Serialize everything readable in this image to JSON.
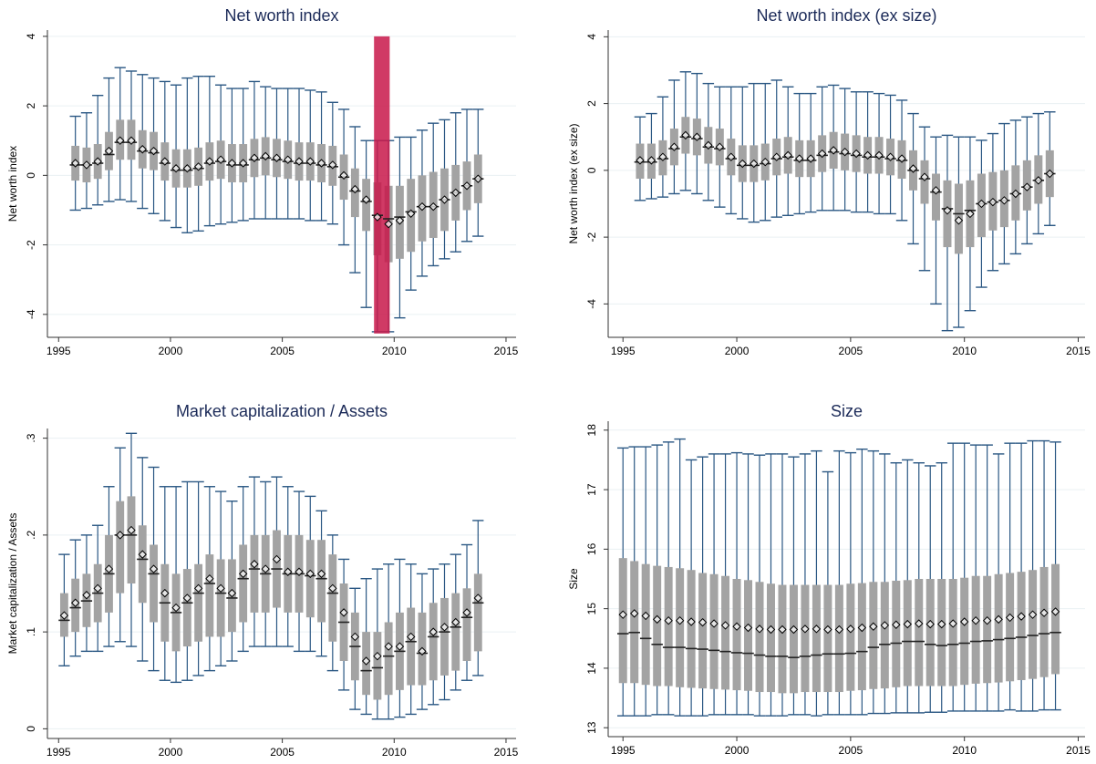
{
  "chart_data": [
    {
      "type": "box",
      "title": "Net worth index",
      "y_label": "Net worth index",
      "x": [
        1995.75,
        1996.25,
        1996.75,
        1997.25,
        1997.75,
        1998.25,
        1998.75,
        1999.25,
        1999.75,
        2000.25,
        2000.75,
        2001.25,
        2001.75,
        2002.25,
        2002.75,
        2003.25,
        2003.75,
        2004.25,
        2004.75,
        2005.25,
        2005.75,
        2006.25,
        2006.75,
        2007.25,
        2007.75,
        2008.25,
        2008.75,
        2009.25,
        2009.75,
        2010.25,
        2010.75,
        2011.25,
        2011.75,
        2012.25,
        2012.75,
        2013.25,
        2013.75
      ],
      "mean": [
        0.35,
        0.3,
        0.4,
        0.7,
        1.0,
        1.0,
        0.75,
        0.7,
        0.4,
        0.2,
        0.2,
        0.25,
        0.4,
        0.45,
        0.35,
        0.35,
        0.5,
        0.55,
        0.5,
        0.45,
        0.4,
        0.4,
        0.35,
        0.3,
        0.0,
        -0.4,
        -0.7,
        -1.2,
        -1.4,
        -1.3,
        -1.1,
        -0.9,
        -0.9,
        -0.7,
        -0.5,
        -0.3,
        -0.1
      ],
      "median": [
        0.3,
        0.3,
        0.35,
        0.6,
        0.95,
        0.95,
        0.7,
        0.65,
        0.35,
        0.15,
        0.15,
        0.2,
        0.35,
        0.4,
        0.3,
        0.3,
        0.45,
        0.5,
        0.45,
        0.4,
        0.35,
        0.35,
        0.3,
        0.25,
        -0.05,
        -0.45,
        -0.75,
        -1.15,
        -1.25,
        -1.2,
        -1.05,
        -0.9,
        -0.9,
        -0.7,
        -0.5,
        -0.3,
        -0.1
      ],
      "q1": [
        -0.15,
        -0.2,
        -0.1,
        0.15,
        0.45,
        0.45,
        0.2,
        0.15,
        -0.15,
        -0.35,
        -0.35,
        -0.3,
        -0.15,
        -0.1,
        -0.2,
        -0.2,
        -0.05,
        0.0,
        -0.05,
        -0.1,
        -0.15,
        -0.15,
        -0.2,
        -0.3,
        -0.7,
        -1.2,
        -1.6,
        -2.3,
        -2.5,
        -2.4,
        -2.2,
        -1.9,
        -1.8,
        -1.6,
        -1.3,
        -1.0,
        -0.8
      ],
      "q3": [
        0.85,
        0.8,
        0.9,
        1.25,
        1.6,
        1.6,
        1.3,
        1.25,
        0.95,
        0.75,
        0.75,
        0.8,
        0.95,
        1.0,
        0.9,
        0.9,
        1.05,
        1.1,
        1.05,
        1.0,
        0.95,
        0.95,
        0.9,
        0.85,
        0.6,
        0.2,
        -0.1,
        -0.2,
        -0.3,
        -0.3,
        -0.1,
        0.0,
        0.1,
        0.2,
        0.3,
        0.4,
        0.6
      ],
      "whisker_low": [
        -1.0,
        -0.95,
        -0.85,
        -0.75,
        -0.7,
        -0.75,
        -0.95,
        -1.1,
        -1.3,
        -1.5,
        -1.65,
        -1.6,
        -1.45,
        -1.4,
        -1.35,
        -1.3,
        -1.25,
        -1.25,
        -1.25,
        -1.25,
        -1.25,
        -1.3,
        -1.3,
        -1.4,
        -2.0,
        -2.8,
        -3.8,
        -4.5,
        -4.5,
        -4.1,
        -3.3,
        -2.9,
        -2.6,
        -2.4,
        -2.2,
        -1.9,
        -1.75
      ],
      "whisker_high": [
        1.7,
        1.8,
        2.3,
        2.8,
        3.1,
        3.0,
        2.9,
        2.8,
        2.7,
        2.6,
        2.8,
        2.85,
        2.85,
        2.6,
        2.5,
        2.5,
        2.7,
        2.55,
        2.5,
        2.5,
        2.5,
        2.45,
        2.4,
        2.1,
        1.9,
        1.4,
        1.0,
        1.0,
        1.0,
        1.1,
        1.1,
        1.3,
        1.5,
        1.6,
        1.8,
        1.9,
        1.9
      ],
      "highlight": {
        "x": [
          2009.1,
          2009.8
        ],
        "y": [
          -4.55,
          4
        ],
        "color": "#c8174a"
      },
      "xlim": [
        1994.5,
        2015.45
      ],
      "xticks": [
        1995,
        2000,
        2005,
        2010,
        2015
      ],
      "ylim": [
        -4.66,
        4.18
      ],
      "yticks": [
        -4,
        -2,
        0,
        2,
        4
      ],
      "grid": true,
      "box_color": "#a3a3a3",
      "whisker_color": "#2a5783",
      "marker_color": "#000000"
    },
    {
      "type": "box",
      "title": "Net worth index (ex size)",
      "y_label": "Net worth index (ex size)",
      "x": [
        1995.75,
        1996.25,
        1996.75,
        1997.25,
        1997.75,
        1998.25,
        1998.75,
        1999.25,
        1999.75,
        2000.25,
        2000.75,
        2001.25,
        2001.75,
        2002.25,
        2002.75,
        2003.25,
        2003.75,
        2004.25,
        2004.75,
        2005.25,
        2005.75,
        2006.25,
        2006.75,
        2007.25,
        2007.75,
        2008.25,
        2008.75,
        2009.25,
        2009.75,
        2010.25,
        2010.75,
        2011.25,
        2011.75,
        2012.25,
        2012.75,
        2013.25,
        2013.75
      ],
      "mean": [
        0.3,
        0.3,
        0.4,
        0.7,
        1.05,
        1.0,
        0.75,
        0.7,
        0.4,
        0.2,
        0.2,
        0.25,
        0.4,
        0.45,
        0.35,
        0.35,
        0.5,
        0.6,
        0.55,
        0.5,
        0.45,
        0.45,
        0.4,
        0.35,
        0.05,
        -0.2,
        -0.6,
        -1.2,
        -1.5,
        -1.3,
        -1.0,
        -0.95,
        -0.9,
        -0.7,
        -0.5,
        -0.3,
        -0.1
      ],
      "median": [
        0.25,
        0.25,
        0.35,
        0.65,
        1.0,
        0.95,
        0.7,
        0.65,
        0.35,
        0.15,
        0.15,
        0.2,
        0.35,
        0.4,
        0.3,
        0.3,
        0.45,
        0.55,
        0.5,
        0.45,
        0.4,
        0.4,
        0.35,
        0.3,
        0.0,
        -0.25,
        -0.65,
        -1.15,
        -1.3,
        -1.2,
        -1.0,
        -0.95,
        -0.9,
        -0.7,
        -0.5,
        -0.3,
        -0.1
      ],
      "q1": [
        -0.25,
        -0.25,
        -0.15,
        0.15,
        0.5,
        0.45,
        0.2,
        0.15,
        -0.15,
        -0.35,
        -0.35,
        -0.3,
        -0.15,
        -0.1,
        -0.2,
        -0.2,
        -0.05,
        0.05,
        0.0,
        -0.05,
        -0.1,
        -0.1,
        -0.15,
        -0.25,
        -0.6,
        -1.0,
        -1.5,
        -2.3,
        -2.5,
        -2.3,
        -2.0,
        -1.8,
        -1.7,
        -1.5,
        -1.2,
        -1.0,
        -0.8
      ],
      "q3": [
        0.8,
        0.8,
        0.9,
        1.25,
        1.6,
        1.55,
        1.3,
        1.25,
        0.95,
        0.75,
        0.75,
        0.8,
        0.95,
        1.0,
        0.9,
        0.9,
        1.05,
        1.15,
        1.1,
        1.05,
        1.0,
        1.0,
        0.95,
        0.9,
        0.6,
        0.3,
        -0.1,
        -0.3,
        -0.4,
        -0.3,
        -0.1,
        -0.05,
        0.0,
        0.15,
        0.3,
        0.45,
        0.6
      ],
      "whisker_low": [
        -0.9,
        -0.85,
        -0.8,
        -0.7,
        -0.6,
        -0.7,
        -0.9,
        -1.1,
        -1.3,
        -1.45,
        -1.55,
        -1.5,
        -1.4,
        -1.35,
        -1.3,
        -1.25,
        -1.2,
        -1.2,
        -1.2,
        -1.25,
        -1.25,
        -1.3,
        -1.3,
        -1.5,
        -2.2,
        -3.0,
        -4.0,
        -4.8,
        -4.7,
        -4.2,
        -3.5,
        -3.0,
        -2.8,
        -2.5,
        -2.2,
        -1.9,
        -1.65
      ],
      "whisker_high": [
        1.6,
        1.7,
        2.2,
        2.7,
        2.95,
        2.9,
        2.6,
        2.5,
        2.5,
        2.5,
        2.6,
        2.6,
        2.7,
        2.5,
        2.3,
        2.3,
        2.5,
        2.55,
        2.45,
        2.35,
        2.35,
        2.3,
        2.25,
        2.1,
        1.7,
        1.3,
        1.0,
        1.05,
        1.0,
        1.0,
        0.9,
        1.1,
        1.4,
        1.5,
        1.6,
        1.7,
        1.75
      ],
      "xlim": [
        1994.35,
        2015.3
      ],
      "xticks": [
        1995,
        2000,
        2005,
        2010,
        2015
      ],
      "ylim": [
        -5.0,
        4.2
      ],
      "yticks": [
        -4,
        -2,
        0,
        2,
        4
      ],
      "grid": true,
      "box_color": "#a3a3a3",
      "whisker_color": "#2a5783",
      "marker_color": "#000000"
    },
    {
      "type": "box",
      "title": "Market capitalization / Assets",
      "y_label": "Market capitalization / Assets",
      "x": [
        1995.25,
        1995.75,
        1996.25,
        1996.75,
        1997.25,
        1997.75,
        1998.25,
        1998.75,
        1999.25,
        1999.75,
        2000.25,
        2000.75,
        2001.25,
        2001.75,
        2002.25,
        2002.75,
        2003.25,
        2003.75,
        2004.25,
        2004.75,
        2005.25,
        2005.75,
        2006.25,
        2006.75,
        2007.25,
        2007.75,
        2008.25,
        2008.75,
        2009.25,
        2009.75,
        2010.25,
        2010.75,
        2011.25,
        2011.75,
        2012.25,
        2012.75,
        2013.25,
        2013.75
      ],
      "mean": [
        0.117,
        0.13,
        0.138,
        0.145,
        0.165,
        0.2,
        0.205,
        0.18,
        0.165,
        0.14,
        0.125,
        0.135,
        0.145,
        0.155,
        0.145,
        0.14,
        0.16,
        0.17,
        0.165,
        0.175,
        0.162,
        0.162,
        0.16,
        0.16,
        0.145,
        0.12,
        0.095,
        0.07,
        0.075,
        0.085,
        0.085,
        0.095,
        0.08,
        0.1,
        0.105,
        0.11,
        0.12,
        0.135
      ],
      "median": [
        0.112,
        0.125,
        0.132,
        0.14,
        0.16,
        0.2,
        0.2,
        0.175,
        0.16,
        0.13,
        0.12,
        0.13,
        0.14,
        0.15,
        0.14,
        0.135,
        0.155,
        0.165,
        0.16,
        0.165,
        0.16,
        0.16,
        0.158,
        0.155,
        0.14,
        0.11,
        0.085,
        0.06,
        0.063,
        0.075,
        0.08,
        0.09,
        0.078,
        0.095,
        0.1,
        0.105,
        0.115,
        0.13
      ],
      "q1": [
        0.095,
        0.1,
        0.105,
        0.11,
        0.12,
        0.14,
        0.15,
        0.13,
        0.11,
        0.09,
        0.08,
        0.085,
        0.09,
        0.095,
        0.095,
        0.1,
        0.11,
        0.12,
        0.12,
        0.125,
        0.12,
        0.12,
        0.115,
        0.11,
        0.09,
        0.07,
        0.05,
        0.035,
        0.03,
        0.035,
        0.04,
        0.045,
        0.045,
        0.05,
        0.055,
        0.06,
        0.07,
        0.08
      ],
      "q3": [
        0.14,
        0.155,
        0.16,
        0.17,
        0.2,
        0.235,
        0.24,
        0.21,
        0.19,
        0.17,
        0.16,
        0.165,
        0.17,
        0.18,
        0.175,
        0.175,
        0.19,
        0.2,
        0.2,
        0.205,
        0.2,
        0.2,
        0.195,
        0.195,
        0.18,
        0.15,
        0.12,
        0.1,
        0.1,
        0.11,
        0.12,
        0.125,
        0.12,
        0.13,
        0.135,
        0.14,
        0.145,
        0.16
      ],
      "whisker_low": [
        0.065,
        0.075,
        0.08,
        0.08,
        0.085,
        0.09,
        0.085,
        0.07,
        0.06,
        0.05,
        0.048,
        0.05,
        0.055,
        0.06,
        0.065,
        0.07,
        0.08,
        0.085,
        0.085,
        0.085,
        0.085,
        0.08,
        0.08,
        0.075,
        0.06,
        0.04,
        0.02,
        0.015,
        0.01,
        0.01,
        0.012,
        0.015,
        0.02,
        0.025,
        0.03,
        0.04,
        0.05,
        0.055
      ],
      "whisker_high": [
        0.18,
        0.195,
        0.2,
        0.21,
        0.25,
        0.29,
        0.305,
        0.28,
        0.27,
        0.25,
        0.25,
        0.255,
        0.255,
        0.25,
        0.245,
        0.235,
        0.25,
        0.26,
        0.255,
        0.26,
        0.25,
        0.245,
        0.24,
        0.225,
        0.2,
        0.175,
        0.145,
        0.155,
        0.165,
        0.17,
        0.175,
        0.17,
        0.16,
        0.165,
        0.17,
        0.18,
        0.19,
        0.215
      ],
      "xlim": [
        1994.5,
        2015.45
      ],
      "xticks": [
        1995,
        2000,
        2005,
        2010,
        2015
      ],
      "ylim": [
        -0.01,
        0.31
      ],
      "yticks": [
        0,
        {
          "value": 0.1,
          "label": ".1"
        },
        {
          "value": 0.2,
          "label": ".2"
        },
        {
          "value": 0.3,
          "label": ".3"
        }
      ],
      "grid": true,
      "box_color": "#a3a3a3",
      "whisker_color": "#2a5783",
      "marker_color": "#000000"
    },
    {
      "type": "box",
      "title": "Size",
      "y_label": "Size",
      "x": [
        1995.0,
        1995.5,
        1996.0,
        1996.5,
        1997.0,
        1997.5,
        1998.0,
        1998.5,
        1999.0,
        1999.5,
        2000.0,
        2000.5,
        2001.0,
        2001.5,
        2002.0,
        2002.5,
        2003.0,
        2003.5,
        2004.0,
        2004.5,
        2005.0,
        2005.5,
        2006.0,
        2006.5,
        2007.0,
        2007.5,
        2008.0,
        2008.5,
        2009.0,
        2009.5,
        2010.0,
        2010.5,
        2011.0,
        2011.5,
        2012.0,
        2012.5,
        2013.0,
        2013.5,
        2014.0
      ],
      "mean": [
        14.9,
        14.92,
        14.88,
        14.82,
        14.8,
        14.8,
        14.78,
        14.77,
        14.75,
        14.72,
        14.7,
        14.68,
        14.66,
        14.65,
        14.65,
        14.65,
        14.66,
        14.66,
        14.65,
        14.65,
        14.66,
        14.68,
        14.7,
        14.72,
        14.73,
        14.74,
        14.75,
        14.74,
        14.74,
        14.75,
        14.78,
        14.8,
        14.8,
        14.82,
        14.85,
        14.87,
        14.9,
        14.93,
        14.95
      ],
      "median": [
        14.58,
        14.6,
        14.5,
        14.4,
        14.35,
        14.35,
        14.33,
        14.32,
        14.3,
        14.28,
        14.26,
        14.25,
        14.22,
        14.2,
        14.2,
        14.18,
        14.2,
        14.22,
        14.24,
        14.24,
        14.25,
        14.28,
        14.35,
        14.4,
        14.42,
        14.45,
        14.45,
        14.4,
        14.38,
        14.4,
        14.42,
        14.45,
        14.46,
        14.48,
        14.5,
        14.52,
        14.55,
        14.58,
        14.6
      ],
      "q1": [
        13.75,
        13.75,
        13.72,
        13.7,
        13.7,
        13.68,
        13.67,
        13.66,
        13.65,
        13.64,
        13.63,
        13.62,
        13.6,
        13.6,
        13.58,
        13.58,
        13.6,
        13.6,
        13.6,
        13.6,
        13.62,
        13.63,
        13.65,
        13.66,
        13.68,
        13.7,
        13.7,
        13.7,
        13.7,
        13.7,
        13.72,
        13.74,
        13.75,
        13.76,
        13.78,
        13.8,
        13.82,
        13.85,
        13.9
      ],
      "q3": [
        15.85,
        15.8,
        15.75,
        15.72,
        15.7,
        15.68,
        15.65,
        15.6,
        15.58,
        15.55,
        15.5,
        15.48,
        15.45,
        15.42,
        15.4,
        15.4,
        15.4,
        15.4,
        15.4,
        15.4,
        15.42,
        15.43,
        15.45,
        15.45,
        15.47,
        15.48,
        15.5,
        15.5,
        15.5,
        15.5,
        15.52,
        15.55,
        15.55,
        15.58,
        15.6,
        15.62,
        15.65,
        15.7,
        15.75
      ],
      "whisker_low": [
        13.2,
        13.2,
        13.2,
        13.22,
        13.22,
        13.2,
        13.2,
        13.2,
        13.22,
        13.22,
        13.22,
        13.22,
        13.2,
        13.2,
        13.2,
        13.22,
        13.22,
        13.2,
        13.22,
        13.22,
        13.22,
        13.22,
        13.24,
        13.24,
        13.25,
        13.25,
        13.25,
        13.26,
        13.26,
        13.28,
        13.28,
        13.28,
        13.28,
        13.28,
        13.3,
        13.28,
        13.28,
        13.3,
        13.3
      ],
      "whisker_high": [
        17.7,
        17.72,
        17.72,
        17.75,
        17.8,
        17.85,
        17.5,
        17.55,
        17.6,
        17.6,
        17.62,
        17.6,
        17.58,
        17.6,
        17.6,
        17.55,
        17.6,
        17.65,
        17.3,
        17.65,
        17.62,
        17.68,
        17.65,
        17.6,
        17.45,
        17.5,
        17.45,
        17.4,
        17.45,
        17.78,
        17.78,
        17.75,
        17.75,
        17.6,
        17.78,
        17.78,
        17.82,
        17.82,
        17.8
      ],
      "xlim": [
        1994.35,
        2015.3
      ],
      "xticks": [
        1995,
        2000,
        2005,
        2010,
        2015
      ],
      "ylim": [
        12.85,
        18.15
      ],
      "yticks": [
        13,
        14,
        15,
        16,
        17,
        18
      ],
      "grid": true,
      "box_color": "#a3a3a3",
      "whisker_color": "#2a5783",
      "marker_color": "#000000"
    }
  ]
}
